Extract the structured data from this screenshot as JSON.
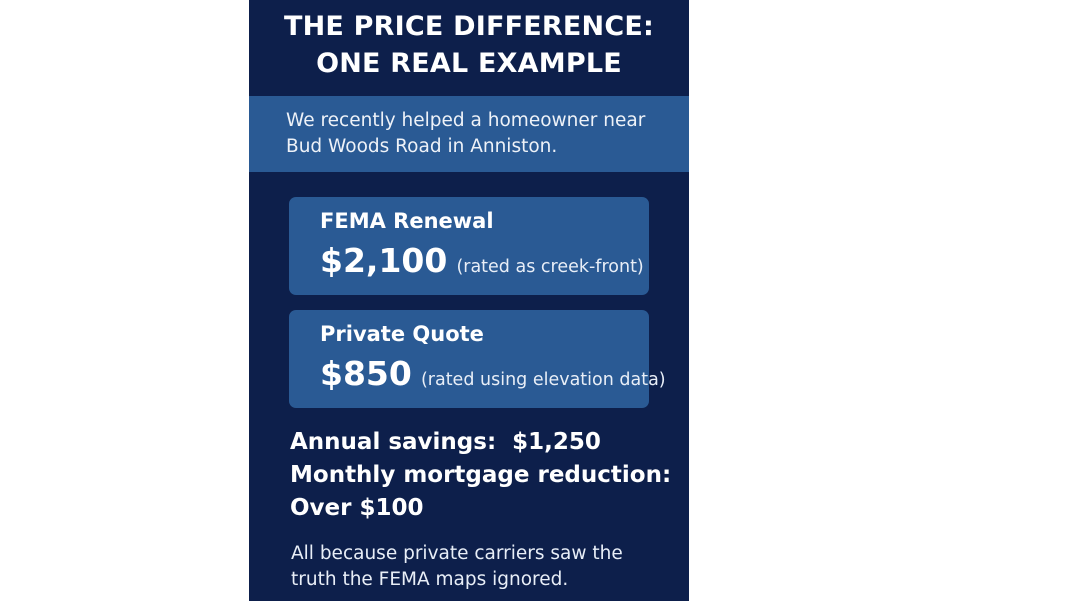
{
  "title_lines": [
    "THE PRICE DIFFERENCE:",
    "ONE REAL EXAMPLE"
  ],
  "intro_lines": [
    "We recently helped a homeowner near",
    "Bud Woods Road in Anniston."
  ],
  "cards": [
    {
      "label": "FEMA Renewal",
      "amount": "$2,100",
      "note": "(rated as creek-front)"
    },
    {
      "label": "Private Quote",
      "amount": "$850",
      "note": "(rated using elevation data)"
    }
  ],
  "stats": {
    "annual_label": "Annual savings:",
    "annual_value": "$1,250",
    "monthly_label": "Monthly mortgage reduction:",
    "monthly_value": "Over $100"
  },
  "footer_lines": [
    "All because private carriers saw the",
    "truth the FEMA maps ignored."
  ],
  "colors": {
    "background": "#0d1f4b",
    "accent": "#2a5a94",
    "text": "#ffffff"
  }
}
